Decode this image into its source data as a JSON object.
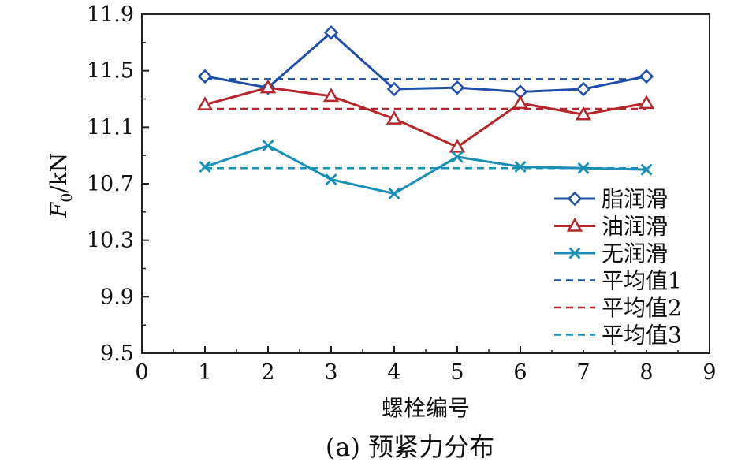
{
  "chart_data": {
    "type": "line",
    "caption": "(a) 预紧力分布",
    "xlabel": "螺栓编号",
    "ylabel_main": "F",
    "ylabel_sub": "0",
    "ylabel_unit": "/kN",
    "xlim": [
      0,
      9
    ],
    "ylim": [
      9.5,
      11.9
    ],
    "xticks": [
      0,
      1,
      2,
      3,
      4,
      5,
      6,
      7,
      8,
      9
    ],
    "yticks": [
      9.5,
      9.9,
      10.3,
      10.7,
      11.1,
      11.5,
      11.9
    ],
    "ytick_labels": [
      "9.5",
      "9.9",
      "10.3",
      "10.7",
      "11.1",
      "11.5",
      "11.9"
    ],
    "grid": false,
    "legend_position": "bottom-right",
    "x": [
      1,
      2,
      3,
      4,
      5,
      6,
      7,
      8
    ],
    "series": [
      {
        "name": "脂润滑",
        "marker": "diamond",
        "color": "#1f4fa8",
        "values": [
          11.46,
          11.38,
          11.77,
          11.37,
          11.38,
          11.35,
          11.37,
          11.46
        ]
      },
      {
        "name": "油润滑",
        "marker": "triangle",
        "color": "#b5262a",
        "values": [
          11.26,
          11.38,
          11.32,
          11.16,
          10.96,
          11.27,
          11.19,
          11.27
        ]
      },
      {
        "name": "无润滑",
        "marker": "x",
        "color": "#1a8fb5",
        "values": [
          10.82,
          10.97,
          10.73,
          10.63,
          10.89,
          10.82,
          10.81,
          10.8
        ]
      }
    ],
    "averages": [
      {
        "name": "平均值1",
        "value": 11.44,
        "color": "#1f4fa8",
        "x_range": [
          1,
          8
        ]
      },
      {
        "name": "平均值2",
        "value": 11.23,
        "color": "#b5262a",
        "x_range": [
          1,
          8
        ]
      },
      {
        "name": "平均值3",
        "value": 10.81,
        "color": "#1a8fb5",
        "x_range": [
          1,
          8
        ]
      }
    ]
  }
}
